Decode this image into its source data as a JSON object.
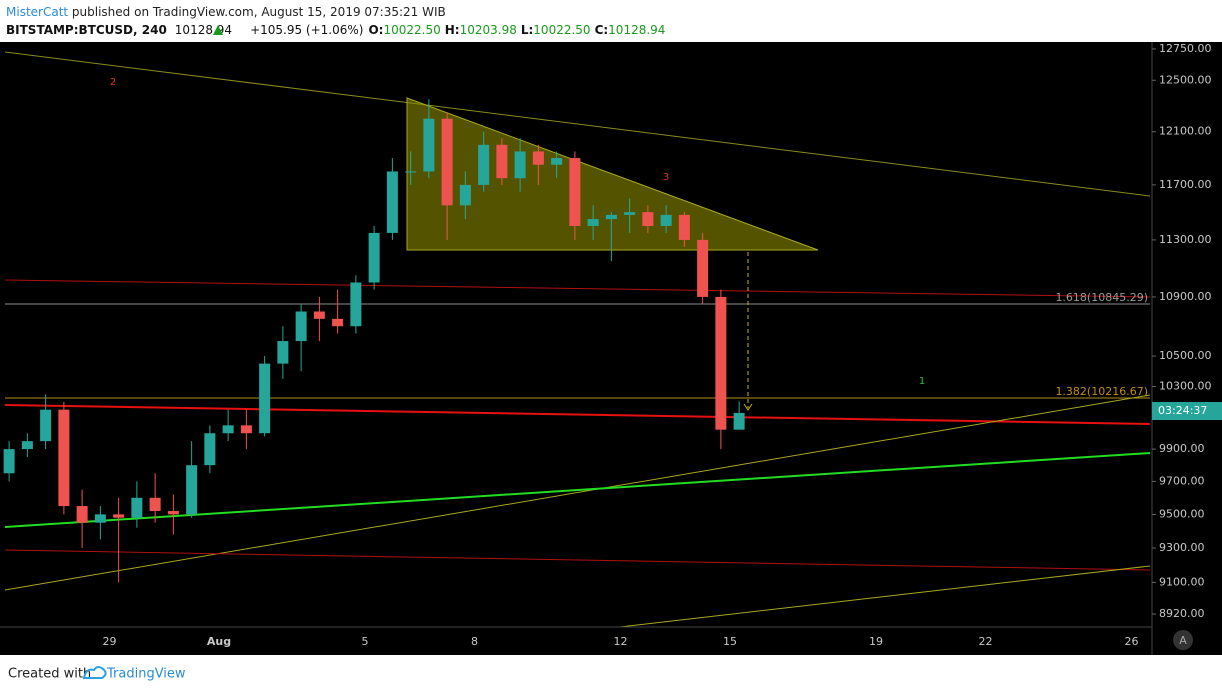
{
  "header": {
    "author": "MisterCatt",
    "published": " published on TradingView.com, August 15, 2019 07:35:21 WIB",
    "symbol": "BITSTAMP:BTCUSD, 240",
    "last": "10128.94",
    "change": "+105.95 (+1.06%)",
    "ohlc": [
      {
        "label": "O:",
        "value": "10022.50"
      },
      {
        "label": "H:",
        "value": "10203.98"
      },
      {
        "label": "L:",
        "value": "10022.50"
      },
      {
        "label": "C:",
        "value": "10128.94"
      }
    ]
  },
  "chart_data": {
    "type": "candlestick",
    "categories": [
      null,
      null,
      null,
      null,
      null,
      null,
      "29",
      null,
      null,
      null,
      null,
      null,
      "Aug",
      null,
      null,
      null,
      null,
      null,
      null,
      null,
      "5",
      null,
      null,
      null,
      null,
      null,
      "8",
      null,
      null,
      null,
      null,
      null,
      null,
      null,
      "12",
      null,
      null,
      null,
      null,
      null,
      "15",
      null,
      null,
      null,
      null,
      null,
      null,
      null,
      "19",
      null,
      null,
      null,
      null,
      null,
      "22",
      null,
      null,
      null,
      null,
      null,
      null,
      null,
      "26"
    ],
    "open": [
      9750,
      9900,
      9950,
      10150,
      9550,
      9450,
      9500,
      9480,
      9600,
      9520,
      9500,
      9800,
      10000,
      10050,
      10000,
      10450,
      10600,
      10800,
      10750,
      10700,
      11000,
      11350,
      11800,
      11800,
      12200,
      11550,
      11700,
      12000,
      11750,
      11950,
      11850,
      11900,
      11400,
      11450,
      11480,
      11500,
      11400,
      11480,
      11300,
      10900,
      10022.5,
      null,
      null,
      null,
      null,
      null,
      null,
      null,
      null,
      null,
      null,
      null,
      null,
      null,
      null,
      null,
      null,
      null,
      null,
      null,
      null,
      null,
      null
    ],
    "high": [
      9950,
      10000,
      10250,
      10200,
      9650,
      9550,
      9600,
      9700,
      9750,
      9620,
      9950,
      10050,
      10150,
      10150,
      10500,
      10700,
      10850,
      10900,
      10950,
      11050,
      11400,
      11900,
      11950,
      12350,
      12250,
      11800,
      12100,
      12050,
      12050,
      12000,
      11950,
      11950,
      11550,
      11500,
      11600,
      11550,
      11550,
      11500,
      11350,
      10950,
      10203.98,
      null,
      null,
      null,
      null,
      null,
      null,
      null,
      null,
      null,
      null,
      null,
      null,
      null,
      null,
      null,
      null,
      null,
      null,
      null,
      null,
      null,
      null
    ],
    "low": [
      9700,
      9850,
      9900,
      9500,
      9300,
      9350,
      9100,
      9420,
      9450,
      9380,
      9480,
      9750,
      9950,
      9900,
      9980,
      10350,
      10400,
      10600,
      10650,
      10650,
      10950,
      11300,
      11700,
      11750,
      11300,
      11450,
      11650,
      11700,
      11650,
      11700,
      11750,
      11300,
      11300,
      11150,
      11350,
      11350,
      11350,
      11250,
      10850,
      9900,
      10022.5,
      null,
      null,
      null,
      null,
      null,
      null,
      null,
      null,
      null,
      null,
      null,
      null,
      null,
      null,
      null,
      null,
      null,
      null,
      null,
      null,
      null,
      null
    ],
    "close": [
      9900,
      9950,
      10150,
      9550,
      9450,
      9500,
      9480,
      9600,
      9520,
      9500,
      9800,
      10000,
      10050,
      10000,
      10450,
      10600,
      10800,
      10750,
      10700,
      11000,
      11350,
      11800,
      11800,
      12200,
      11550,
      11700,
      12000,
      11750,
      11950,
      11850,
      11900,
      11400,
      11450,
      11480,
      11500,
      11400,
      11480,
      11300,
      10900,
      10022.5,
      10128.94,
      null,
      null,
      null,
      null,
      null,
      null,
      null,
      null,
      null,
      null,
      null,
      null,
      null,
      null,
      null,
      null,
      null,
      null,
      null,
      null,
      null,
      null
    ],
    "up_color": "#26a69a",
    "down_color": "#ef5350",
    "log_scale": true,
    "ylim": [
      8847,
      12790
    ],
    "yticks": [
      {
        "value": 12750,
        "label": "12750.00"
      },
      {
        "value": 12500,
        "label": "12500.00"
      },
      {
        "value": 12100,
        "label": "12100.00"
      },
      {
        "value": 11700,
        "label": "11700.00"
      },
      {
        "value": 11300,
        "label": "11300.00"
      },
      {
        "value": 10900,
        "label": "10900.00"
      },
      {
        "value": 10500,
        "label": "10500.00"
      },
      {
        "value": 10300,
        "label": "10300.00"
      },
      {
        "value": 9900,
        "label": "9900.00"
      },
      {
        "value": 9700,
        "label": "9700.00"
      },
      {
        "value": 9500,
        "label": "9500.00"
      },
      {
        "value": 9300,
        "label": "9300.00"
      },
      {
        "value": 9100,
        "label": "9100.00"
      },
      {
        "value": 8920,
        "label": "8920.00"
      }
    ],
    "wave_labels": [
      "2",
      "3",
      "1"
    ],
    "fib_labels": [
      "1.618(10845.29)",
      "1.382(10216.67)"
    ],
    "price_tag": "03:24:37"
  },
  "ui": {
    "auto_button": "A"
  },
  "footer": {
    "created_with": "Created with",
    "brand": "TradingView"
  }
}
